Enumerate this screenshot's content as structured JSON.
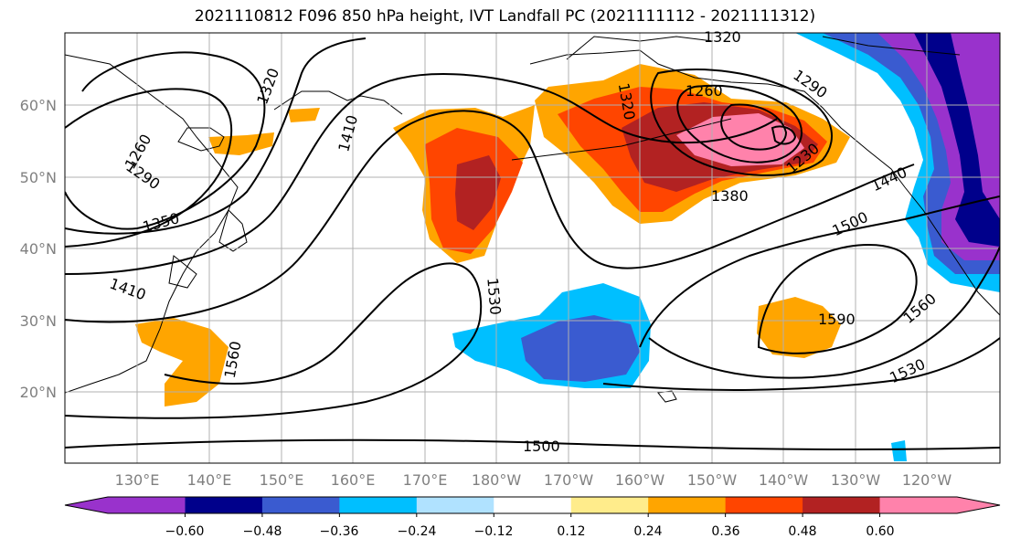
{
  "title": "2021110812 F096 850 hPa height, IVT Landfall PC (2021111112 - 2021111312)",
  "map": {
    "lat_labels": [
      "60°N",
      "50°N",
      "40°N",
      "30°N",
      "20°N"
    ],
    "lon_labels": [
      "130°E",
      "140°E",
      "150°E",
      "160°E",
      "170°E",
      "180°W",
      "170°W",
      "160°W",
      "150°W",
      "140°W",
      "130°W",
      "120°W"
    ],
    "contour_labels": [
      "1320",
      "1260",
      "1290",
      "1350",
      "1410",
      "1410",
      "1320",
      "1320",
      "1260",
      "1290",
      "1230",
      "1380",
      "1440",
      "1500",
      "1530",
      "1560",
      "1590",
      "1560",
      "1530",
      "1500"
    ],
    "grid": true
  },
  "colorbar": {
    "colors": [
      "#9932cc",
      "#00008b",
      "#3a5bd0",
      "#00bfff",
      "#b0e2ff",
      "#ffffff",
      "#ffec8b",
      "#ffa500",
      "#ff4500",
      "#b22222",
      "#ff82ab"
    ],
    "tick_labels": [
      "−0.60",
      "−0.48",
      "−0.36",
      "−0.24",
      "−0.12",
      "0.12",
      "0.24",
      "0.36",
      "0.48",
      "0.60"
    ],
    "extend": "both"
  }
}
